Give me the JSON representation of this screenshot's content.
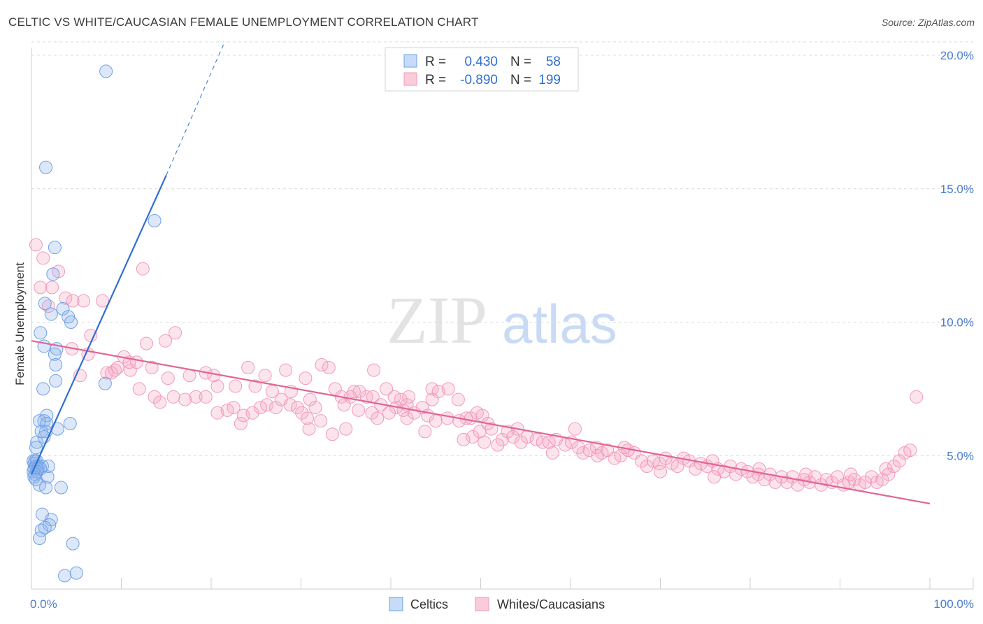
{
  "title": "CELTIC VS WHITE/CAUCASIAN FEMALE UNEMPLOYMENT CORRELATION CHART",
  "source": "Source: ZipAtlas.com",
  "watermark": {
    "zip": "ZIP",
    "atlas": "atlas"
  },
  "colors": {
    "celtic": "#6fa0e6",
    "celtic_line": "#2f6fd1",
    "white": "#f19ab8",
    "white_line": "#e06596",
    "tick": "#4a7fcf"
  },
  "legend": {
    "rows": [
      {
        "r_label": "R =",
        "r_value": "0.430",
        "n_label": "N =",
        "n_value": "58"
      },
      {
        "r_label": "R =",
        "r_value": "-0.890",
        "n_label": "N =",
        "n_value": "199"
      }
    ]
  },
  "chart_data": {
    "type": "scatter",
    "title": "CELTIC VS WHITE/CAUCASIAN FEMALE UNEMPLOYMENT CORRELATION CHART",
    "xlabel": "",
    "ylabel": "Female Unemployment",
    "xlim": [
      0,
      100
    ],
    "ylim": [
      0,
      20.5
    ],
    "x_tick_labels": [
      "0.0%",
      "100.0%"
    ],
    "y_ticks": [
      5,
      10,
      15,
      20
    ],
    "y_tick_labels": [
      "5.0%",
      "10.0%",
      "15.0%",
      "20.0%"
    ],
    "legend_position": "bottom",
    "series": [
      {
        "name": "Celtics",
        "r": 0.43,
        "n": 58,
        "trend": {
          "x0": 0,
          "y0": 4.3,
          "x1": 15.0,
          "y1": 15.5,
          "dash_x1": 21.5,
          "dash_y1": 20.5
        },
        "points": [
          [
            8.3,
            19.4
          ],
          [
            1.6,
            15.8
          ],
          [
            13.7,
            13.8
          ],
          [
            2.6,
            12.8
          ],
          [
            2.4,
            11.8
          ],
          [
            1.5,
            10.7
          ],
          [
            3.5,
            10.5
          ],
          [
            2.2,
            10.3
          ],
          [
            4.1,
            10.2
          ],
          [
            4.4,
            10.0
          ],
          [
            1.0,
            9.6
          ],
          [
            1.4,
            9.1
          ],
          [
            2.8,
            9.0
          ],
          [
            2.6,
            8.8
          ],
          [
            2.7,
            8.4
          ],
          [
            2.7,
            7.8
          ],
          [
            8.2,
            7.7
          ],
          [
            1.3,
            7.5
          ],
          [
            1.7,
            6.5
          ],
          [
            0.9,
            6.3
          ],
          [
            1.4,
            6.3
          ],
          [
            1.7,
            6.2
          ],
          [
            4.3,
            6.2
          ],
          [
            2.9,
            6.0
          ],
          [
            1.6,
            5.9
          ],
          [
            1.1,
            5.9
          ],
          [
            1.4,
            5.7
          ],
          [
            0.6,
            5.5
          ],
          [
            0.5,
            5.3
          ],
          [
            0.2,
            4.8
          ],
          [
            0.4,
            4.8
          ],
          [
            0.6,
            4.8
          ],
          [
            0.3,
            4.7
          ],
          [
            0.5,
            4.6
          ],
          [
            0.8,
            4.6
          ],
          [
            1.2,
            4.6
          ],
          [
            1.9,
            4.6
          ],
          [
            0.3,
            4.5
          ],
          [
            0.7,
            4.5
          ],
          [
            1.0,
            4.5
          ],
          [
            0.2,
            4.4
          ],
          [
            0.6,
            4.4
          ],
          [
            0.4,
            4.3
          ],
          [
            0.3,
            4.2
          ],
          [
            0.5,
            4.1
          ],
          [
            1.8,
            4.2
          ],
          [
            0.9,
            3.9
          ],
          [
            1.6,
            3.8
          ],
          [
            3.3,
            3.8
          ],
          [
            1.2,
            2.8
          ],
          [
            2.2,
            2.6
          ],
          [
            2.0,
            2.4
          ],
          [
            1.5,
            2.3
          ],
          [
            1.1,
            2.2
          ],
          [
            0.9,
            1.9
          ],
          [
            4.6,
            1.7
          ],
          [
            3.7,
            0.5
          ],
          [
            5.0,
            0.6
          ]
        ]
      },
      {
        "name": "Whites/Caucasians",
        "r": -0.89,
        "n": 199,
        "trend": {
          "x0": 0,
          "y0": 9.3,
          "x1": 100,
          "y1": 3.2
        },
        "points": [
          [
            0.5,
            12.9
          ],
          [
            1.3,
            12.4
          ],
          [
            3.0,
            11.9
          ],
          [
            12.4,
            12.0
          ],
          [
            1.0,
            11.3
          ],
          [
            2.3,
            11.3
          ],
          [
            3.8,
            10.9
          ],
          [
            4.6,
            10.8
          ],
          [
            5.8,
            10.8
          ],
          [
            7.9,
            10.8
          ],
          [
            1.9,
            10.6
          ],
          [
            16.0,
            9.6
          ],
          [
            14.9,
            9.3
          ],
          [
            6.6,
            9.5
          ],
          [
            12.8,
            9.2
          ],
          [
            4.5,
            9.0
          ],
          [
            10.3,
            8.7
          ],
          [
            10.9,
            8.5
          ],
          [
            6.3,
            8.8
          ],
          [
            11.7,
            8.5
          ],
          [
            9.3,
            8.2
          ],
          [
            9.6,
            8.3
          ],
          [
            8.4,
            8.1
          ],
          [
            8.9,
            8.1
          ],
          [
            11.0,
            8.2
          ],
          [
            13.4,
            8.3
          ],
          [
            5.4,
            8.0
          ],
          [
            19.4,
            8.1
          ],
          [
            17.6,
            8.0
          ],
          [
            15.2,
            7.9
          ],
          [
            20.3,
            8.0
          ],
          [
            24.1,
            8.3
          ],
          [
            28.3,
            8.2
          ],
          [
            26.0,
            8.0
          ],
          [
            30.5,
            7.9
          ],
          [
            32.3,
            8.4
          ],
          [
            33.1,
            8.3
          ],
          [
            20.7,
            7.6
          ],
          [
            19.4,
            7.2
          ],
          [
            22.7,
            7.6
          ],
          [
            24.9,
            7.6
          ],
          [
            26.8,
            7.4
          ],
          [
            28.9,
            7.4
          ],
          [
            31.0,
            7.1
          ],
          [
            33.8,
            7.5
          ],
          [
            35.5,
            7.2
          ],
          [
            12.0,
            7.5
          ],
          [
            13.7,
            7.2
          ],
          [
            14.3,
            7.0
          ],
          [
            15.8,
            7.2
          ],
          [
            17.1,
            7.1
          ],
          [
            18.3,
            7.2
          ],
          [
            20.7,
            6.6
          ],
          [
            21.8,
            6.7
          ],
          [
            22.5,
            6.8
          ],
          [
            23.6,
            6.5
          ],
          [
            24.6,
            6.6
          ],
          [
            25.5,
            6.8
          ],
          [
            26.2,
            6.9
          ],
          [
            27.2,
            6.8
          ],
          [
            27.8,
            7.1
          ],
          [
            28.8,
            6.9
          ],
          [
            29.6,
            6.8
          ],
          [
            30.1,
            6.6
          ],
          [
            30.7,
            6.4
          ],
          [
            31.6,
            6.8
          ],
          [
            32.2,
            6.3
          ],
          [
            23.3,
            6.2
          ],
          [
            30.9,
            6.0
          ],
          [
            34.5,
            7.2
          ],
          [
            35.9,
            7.4
          ],
          [
            37.3,
            7.2
          ],
          [
            38.0,
            7.2
          ],
          [
            38.9,
            6.9
          ],
          [
            39.8,
            6.6
          ],
          [
            40.6,
            6.8
          ],
          [
            41.4,
            6.7
          ],
          [
            41.8,
            6.4
          ],
          [
            42.6,
            6.6
          ],
          [
            43.5,
            6.8
          ],
          [
            44.1,
            6.5
          ],
          [
            44.6,
            7.1
          ],
          [
            41.1,
            7.1
          ],
          [
            42.0,
            7.2
          ],
          [
            37.9,
            6.6
          ],
          [
            36.4,
            6.7
          ],
          [
            38.5,
            6.4
          ],
          [
            34.8,
            6.9
          ],
          [
            40.4,
            7.2
          ],
          [
            41.8,
            6.9
          ],
          [
            44.6,
            7.5
          ],
          [
            45.3,
            7.4
          ],
          [
            46.4,
            7.5
          ],
          [
            47.5,
            7.1
          ],
          [
            49.6,
            6.6
          ],
          [
            48.4,
            6.4
          ],
          [
            46.3,
            6.4
          ],
          [
            45.0,
            6.3
          ],
          [
            43.8,
            5.9
          ],
          [
            47.6,
            6.3
          ],
          [
            48.9,
            6.4
          ],
          [
            50.2,
            6.5
          ],
          [
            50.8,
            6.2
          ],
          [
            51.2,
            6.0
          ],
          [
            49.9,
            5.9
          ],
          [
            49.1,
            5.7
          ],
          [
            48.1,
            5.6
          ],
          [
            50.4,
            5.5
          ],
          [
            52.4,
            5.6
          ],
          [
            51.9,
            5.4
          ],
          [
            53.0,
            5.9
          ],
          [
            54.1,
            6.0
          ],
          [
            53.6,
            5.7
          ],
          [
            55.2,
            5.7
          ],
          [
            56.2,
            5.6
          ],
          [
            56.9,
            5.5
          ],
          [
            57.6,
            5.5
          ],
          [
            58.4,
            5.6
          ],
          [
            59.4,
            5.4
          ],
          [
            60.1,
            5.5
          ],
          [
            60.9,
            5.3
          ],
          [
            61.4,
            5.1
          ],
          [
            62.1,
            5.2
          ],
          [
            62.9,
            5.3
          ],
          [
            63.5,
            5.1
          ],
          [
            64.1,
            5.2
          ],
          [
            64.9,
            4.9
          ],
          [
            65.6,
            5.0
          ],
          [
            66.4,
            5.2
          ],
          [
            67.1,
            5.1
          ],
          [
            67.9,
            4.8
          ],
          [
            68.5,
            4.6
          ],
          [
            69.2,
            4.8
          ],
          [
            69.9,
            4.7
          ],
          [
            70.6,
            4.9
          ],
          [
            71.3,
            4.7
          ],
          [
            71.9,
            4.6
          ],
          [
            72.6,
            4.9
          ],
          [
            73.2,
            4.8
          ],
          [
            73.9,
            4.5
          ],
          [
            74.5,
            4.7
          ],
          [
            75.2,
            4.6
          ],
          [
            75.8,
            4.8
          ],
          [
            76.4,
            4.5
          ],
          [
            77.1,
            4.4
          ],
          [
            77.8,
            4.6
          ],
          [
            78.4,
            4.3
          ],
          [
            79.0,
            4.5
          ],
          [
            79.7,
            4.4
          ],
          [
            80.3,
            4.2
          ],
          [
            80.9,
            4.3
          ],
          [
            81.6,
            4.1
          ],
          [
            82.2,
            4.3
          ],
          [
            82.8,
            4.0
          ],
          [
            83.5,
            4.2
          ],
          [
            84.1,
            4.0
          ],
          [
            84.7,
            4.2
          ],
          [
            85.3,
            3.9
          ],
          [
            86.0,
            4.1
          ],
          [
            86.6,
            4.0
          ],
          [
            87.2,
            4.2
          ],
          [
            87.9,
            3.9
          ],
          [
            88.5,
            4.1
          ],
          [
            89.1,
            4.0
          ],
          [
            89.7,
            4.2
          ],
          [
            90.4,
            3.9
          ],
          [
            91.0,
            4.0
          ],
          [
            91.6,
            4.1
          ],
          [
            92.2,
            3.9
          ],
          [
            92.8,
            4.0
          ],
          [
            93.5,
            4.2
          ],
          [
            94.1,
            4.0
          ],
          [
            94.7,
            4.1
          ],
          [
            95.4,
            4.3
          ],
          [
            96.0,
            4.6
          ],
          [
            96.6,
            4.8
          ],
          [
            97.2,
            5.1
          ],
          [
            97.8,
            5.2
          ],
          [
            98.5,
            7.2
          ],
          [
            38.1,
            8.2
          ],
          [
            39.5,
            7.5
          ],
          [
            36.5,
            7.4
          ],
          [
            35.0,
            6.0
          ],
          [
            33.5,
            5.8
          ],
          [
            60.5,
            6.0
          ],
          [
            66.0,
            5.3
          ],
          [
            54.5,
            5.5
          ],
          [
            58.0,
            5.1
          ],
          [
            63.0,
            5.0
          ],
          [
            70.0,
            4.4
          ],
          [
            76.0,
            4.2
          ],
          [
            81.0,
            4.5
          ],
          [
            86.2,
            4.3
          ],
          [
            91.2,
            4.3
          ],
          [
            95.1,
            4.5
          ]
        ]
      }
    ]
  }
}
